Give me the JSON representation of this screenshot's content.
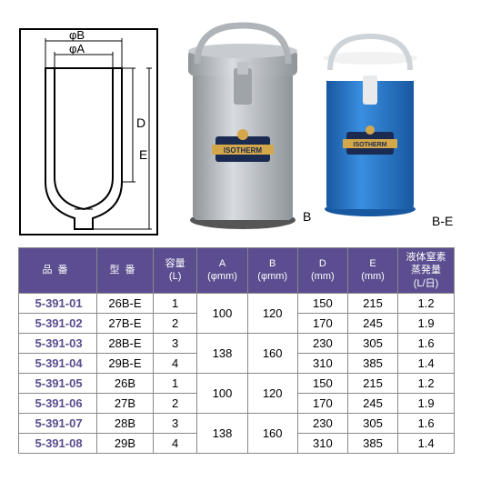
{
  "diagram": {
    "labels": {
      "phiB": "φB",
      "phiA": "φA",
      "D": "D",
      "E": "E"
    }
  },
  "products": {
    "label_b": "B",
    "label_be": "B-E",
    "badge": "ISOTHERM",
    "colors": {
      "silver": "#b8bdc0",
      "blue": "#1e6fc4",
      "lid": "#ffffff",
      "badge_bg": "#1a2a50",
      "badge_ribbon": "#d4a84a"
    }
  },
  "table": {
    "headers": {
      "pn": "品番",
      "model": "型番",
      "capacity": "容量\n(L)",
      "a": "A\n(φmm)",
      "b": "B\n(φmm)",
      "d": "D\n(mm)",
      "e": "E\n(mm)",
      "evap": "液体窒素\n蒸発量\n(L/日)"
    },
    "rows": [
      {
        "pn": "5-391-01",
        "model": "26B-E",
        "cap": "1",
        "a": "100",
        "b": "120",
        "d": "150",
        "e": "215",
        "ev": "1.2"
      },
      {
        "pn": "5-391-02",
        "model": "27B-E",
        "cap": "2",
        "a": "",
        "b": "",
        "d": "170",
        "e": "245",
        "ev": "1.9"
      },
      {
        "pn": "5-391-03",
        "model": "28B-E",
        "cap": "3",
        "a": "138",
        "b": "160",
        "d": "230",
        "e": "305",
        "ev": "1.6"
      },
      {
        "pn": "5-391-04",
        "model": "29B-E",
        "cap": "4",
        "a": "",
        "b": "",
        "d": "310",
        "e": "385",
        "ev": "1.4"
      },
      {
        "pn": "5-391-05",
        "model": "26B",
        "cap": "1",
        "a": "100",
        "b": "120",
        "d": "150",
        "e": "215",
        "ev": "1.2"
      },
      {
        "pn": "5-391-06",
        "model": "27B",
        "cap": "2",
        "a": "",
        "b": "",
        "d": "170",
        "e": "245",
        "ev": "1.9"
      },
      {
        "pn": "5-391-07",
        "model": "28B",
        "cap": "3",
        "a": "138",
        "b": "160",
        "d": "230",
        "e": "305",
        "ev": "1.6"
      },
      {
        "pn": "5-391-08",
        "model": "29B",
        "cap": "4",
        "a": "",
        "b": "",
        "d": "310",
        "e": "385",
        "ev": "1.4"
      }
    ]
  }
}
